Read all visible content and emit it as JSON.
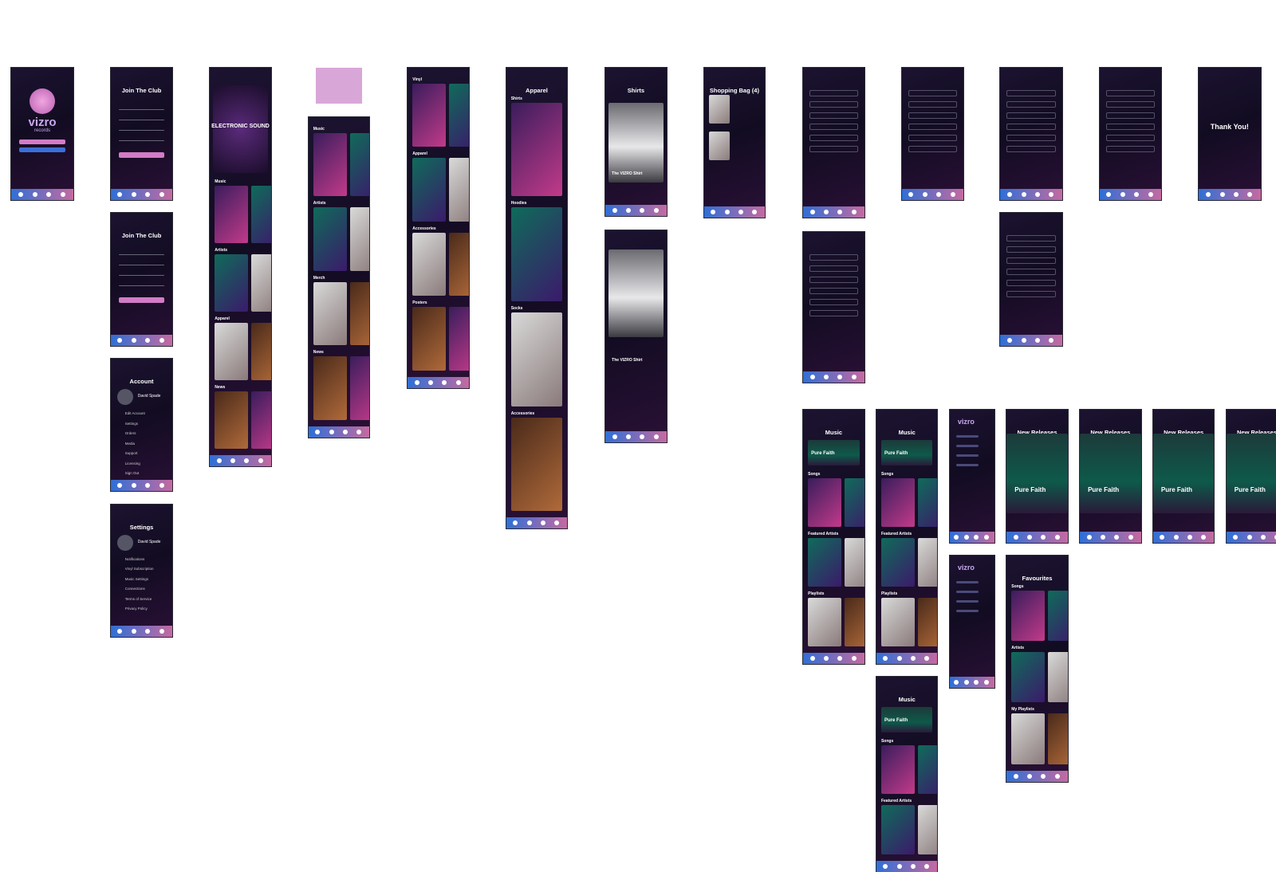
{
  "screens": [
    {
      "logo": "vizro",
      "tagline": "records"
    },
    {
      "title": "Join The Club"
    },
    {
      "title": "Join The Club"
    },
    {
      "title": "Account",
      "name": "David Spade",
      "items": [
        "Edit Account",
        "Settings",
        "Orders",
        "Media",
        "Support",
        "Licensing",
        "Sign Out"
      ]
    },
    {
      "title": "Settings",
      "name": "David Spade",
      "items": [
        "Notifications",
        "Vinyl Subscription",
        "Music Settings",
        "Connections",
        "Terms of Service",
        "Privacy Policy"
      ]
    },
    {
      "hero": "ELECTRONIC SOUND",
      "sections": [
        "Music",
        "Artists",
        "Apparel",
        "News"
      ]
    },
    {
      "sections": [
        "Music",
        "Artists",
        "Merch",
        "News"
      ]
    },
    {
      "sections": [
        "Vinyl",
        "Apparel",
        "Accessories",
        "Posters"
      ]
    },
    {
      "title": "Apparel",
      "sections": [
        "Shirts",
        "Hoodies",
        "Socks",
        "Accessories"
      ]
    },
    {
      "title": "Shirts",
      "caption": "The VIZRO Shirt"
    },
    {
      "caption": "The VIZRO Shirt"
    },
    {
      "title": "Shopping Bag (4)"
    },
    {
      "title": "Thank You!"
    },
    {
      "title": "Music",
      "banner": "Pure Faith",
      "sections": [
        "Songs",
        "Featured Artists",
        "Playlists"
      ]
    },
    {
      "title": "Music",
      "banner": "Pure Faith",
      "sections": [
        "Songs",
        "Featured Artists",
        "Playlists"
      ]
    },
    {
      "logo": "vizro"
    },
    {
      "title": "New Releases",
      "banner": "Pure Faith"
    },
    {
      "title": "New Releases",
      "banner": "Pure Faith"
    },
    {
      "title": "New Releases",
      "banner": "Pure Faith"
    },
    {
      "title": "New Releases",
      "banner": "Pure Faith"
    },
    {
      "logo": "vizro"
    },
    {
      "title": "Favourites",
      "sections": [
        "Songs",
        "Artists",
        "My Playlists"
      ]
    },
    {
      "title": "Music",
      "banner": "Pure Faith",
      "sections": [
        "Songs",
        "Featured Artists"
      ]
    }
  ]
}
